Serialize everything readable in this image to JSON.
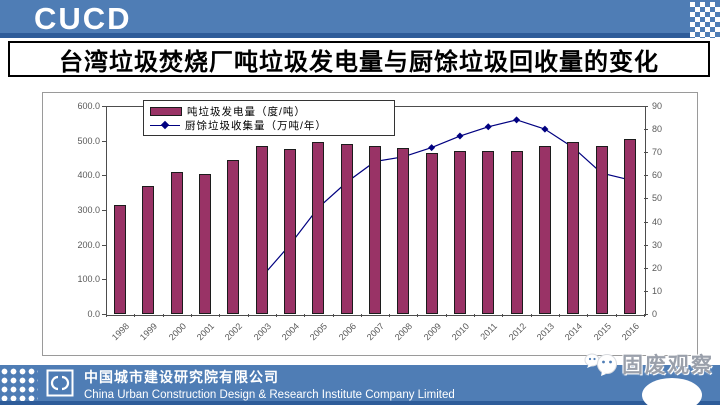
{
  "header": {
    "logo_text": "CUCD"
  },
  "title": "台湾垃圾焚烧厂吨垃圾发电量与厨馀垃圾回收量的变化",
  "chart_data": {
    "type": "bar+line combo",
    "categories": [
      "1998",
      "1999",
      "2000",
      "2001",
      "2002",
      "2003",
      "2004",
      "2005",
      "2006",
      "2007",
      "2008",
      "2009",
      "2010",
      "2011",
      "2012",
      "2013",
      "2014",
      "2015",
      "2016"
    ],
    "series": [
      {
        "name": "吨垃圾发电量（度/吨）",
        "type": "bar",
        "axis": "left",
        "color": "#993366",
        "values": [
          315,
          370,
          410,
          405,
          445,
          485,
          475,
          495,
          490,
          485,
          480,
          465,
          470,
          470,
          470,
          485,
          495,
          485,
          505
        ]
      },
      {
        "name": "厨馀垃圾收集量（万吨/年）",
        "type": "line",
        "axis": "right",
        "color": "#000080",
        "values": [
          null,
          null,
          null,
          null,
          null,
          16,
          30,
          46,
          57,
          66,
          68,
          72,
          77,
          81,
          84,
          80,
          72,
          61,
          58
        ]
      }
    ],
    "left_axis": {
      "min": 0,
      "max": 600,
      "step": 100,
      "ticks": [
        "0.0",
        "100.0",
        "200.0",
        "300.0",
        "400.0",
        "500.0",
        "600.0"
      ]
    },
    "right_axis": {
      "min": 0,
      "max": 90,
      "step": 10,
      "ticks": [
        "0",
        "10",
        "20",
        "30",
        "40",
        "50",
        "60",
        "70",
        "80",
        "90"
      ]
    },
    "legend_position": "top",
    "grid": false
  },
  "footer": {
    "company_cn": "中国城市建设研究院有限公司",
    "company_en": "China Urban Construction Design & Research Institute Company Limited",
    "watermark": "固废观察"
  },
  "colors": {
    "band_blue": "#4f7db5",
    "band_dark_blue": "#2e5c99",
    "bar_fill": "#993366",
    "line_navy": "#000080",
    "axis_text": "#595959",
    "title_text": "#000000"
  }
}
